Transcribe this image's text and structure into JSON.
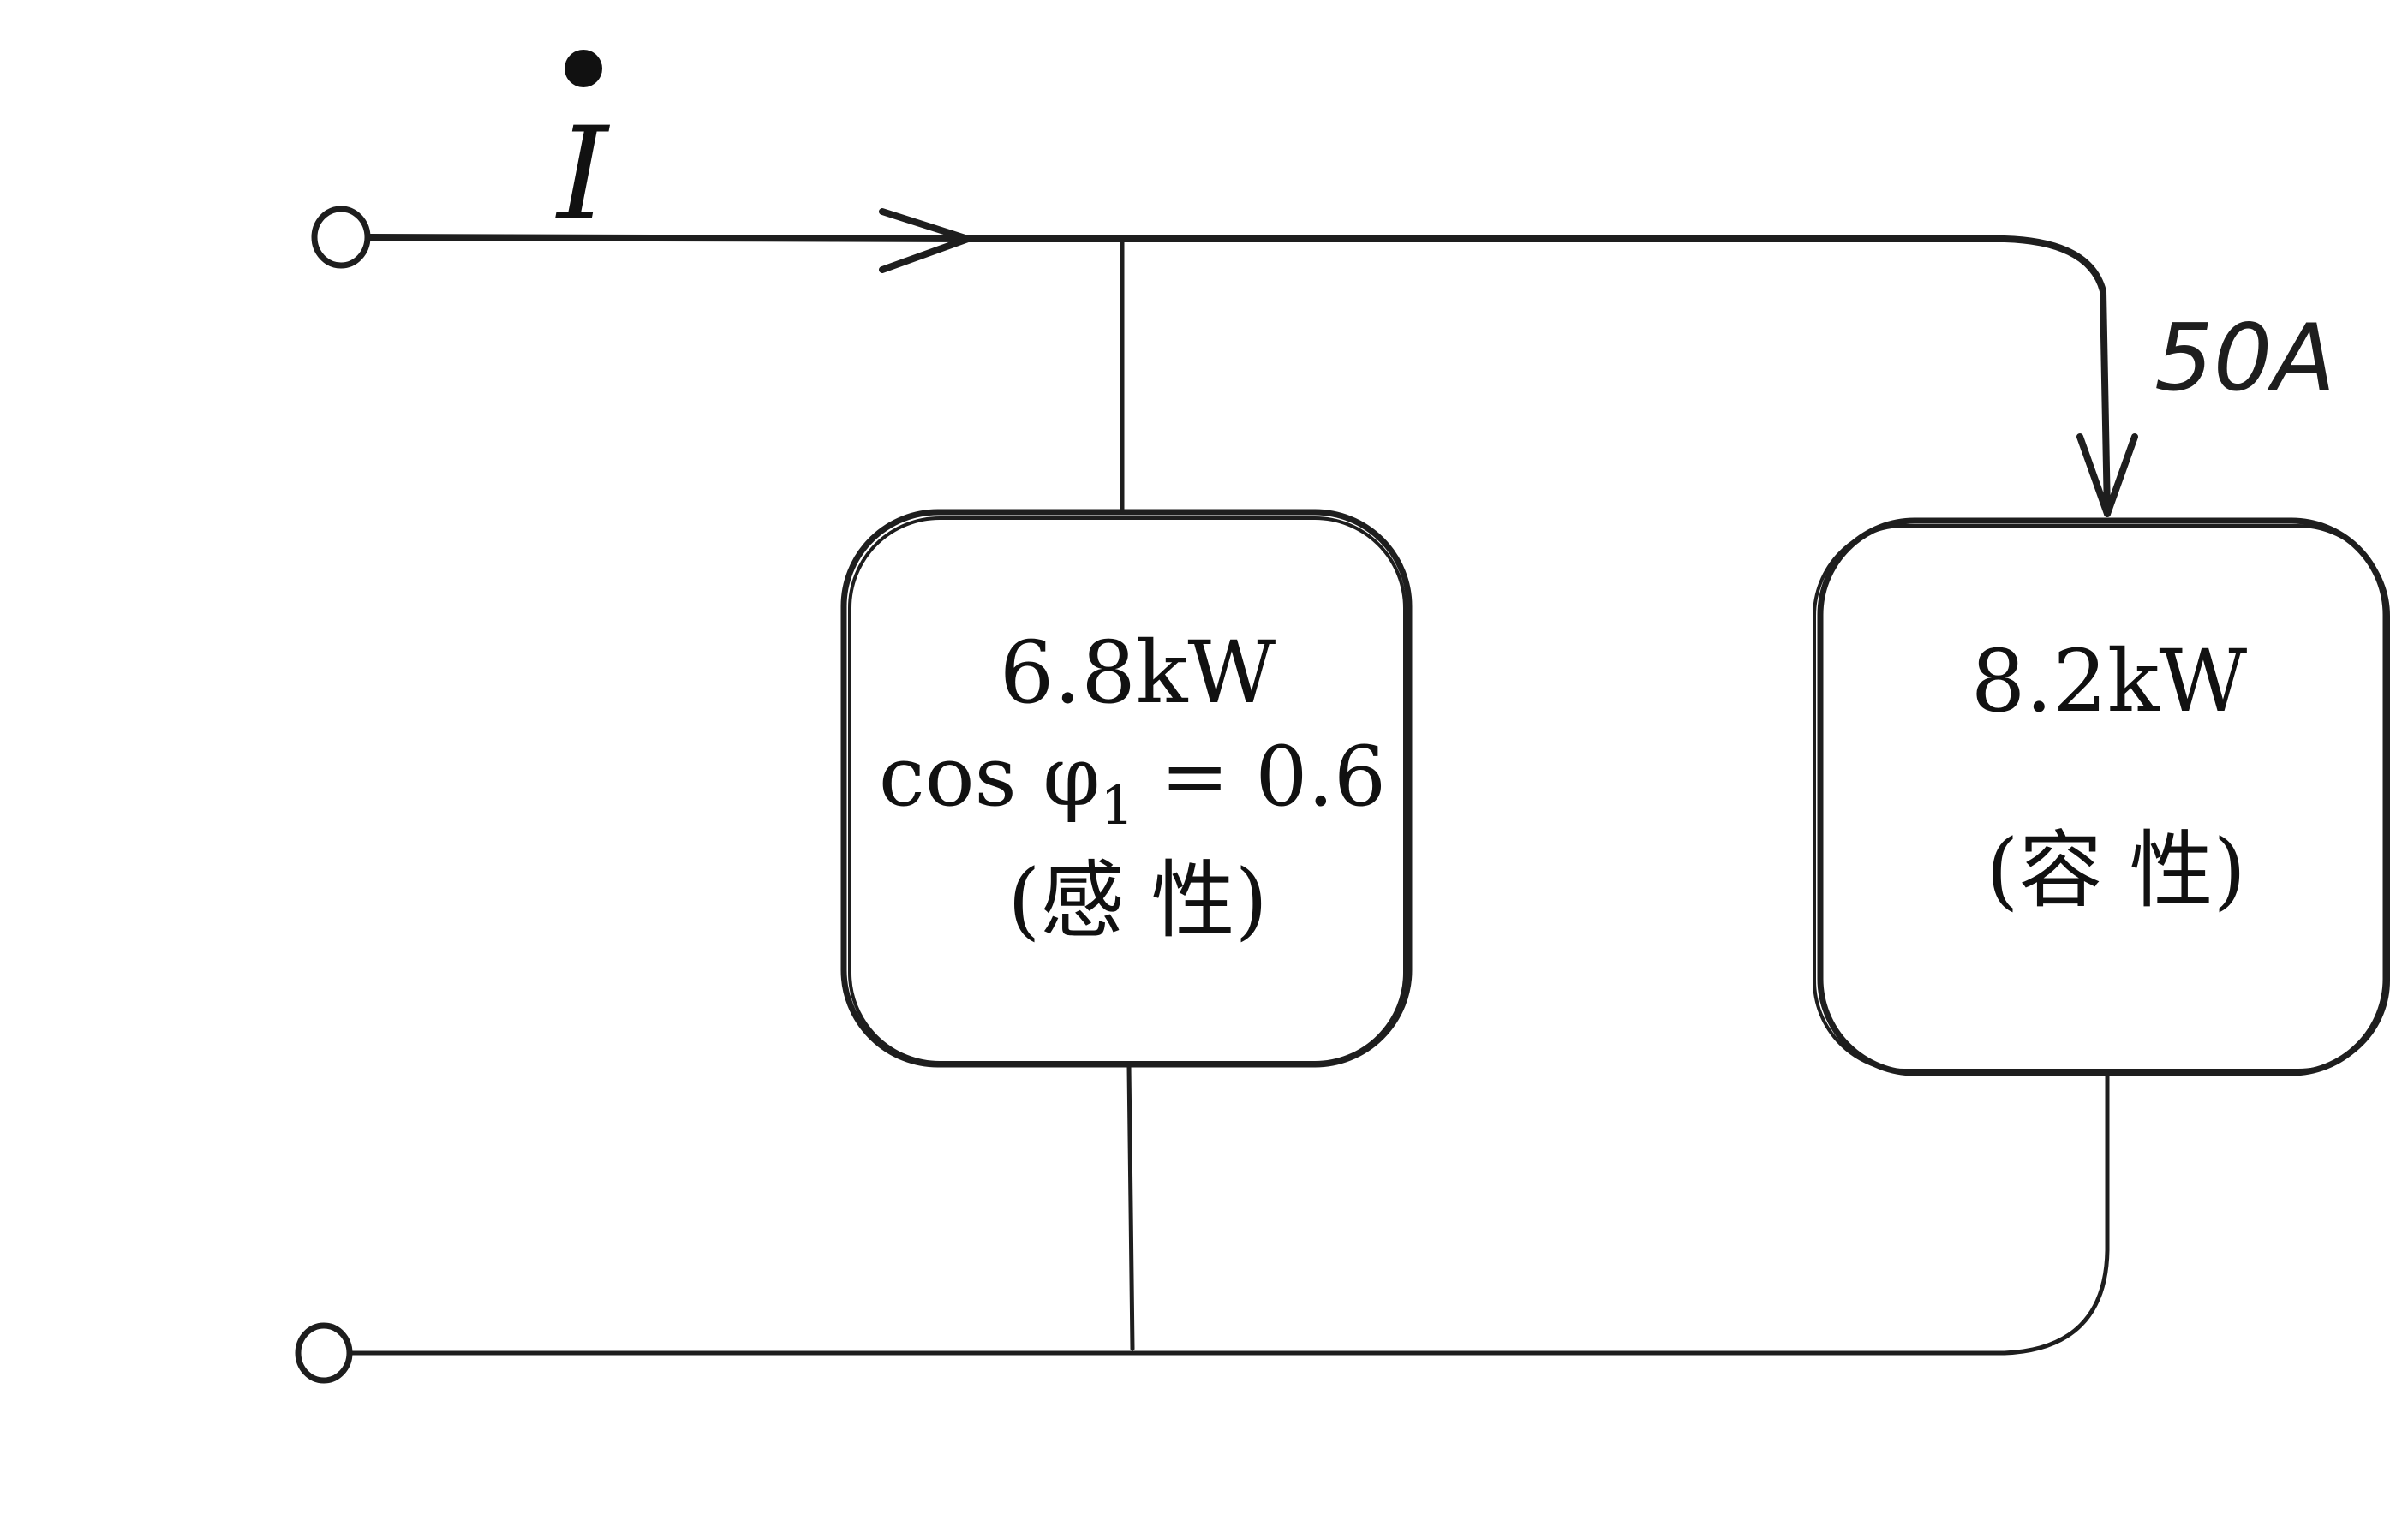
{
  "current_label": "I",
  "branch_current": "50A",
  "load1": {
    "power": "6.8kW",
    "pf_label": "cos φ",
    "pf_subscript": "1",
    "pf_value": " = 0.6",
    "type": "(感 性)"
  },
  "load2": {
    "power": "8.2kW",
    "type": "(容 性)"
  }
}
